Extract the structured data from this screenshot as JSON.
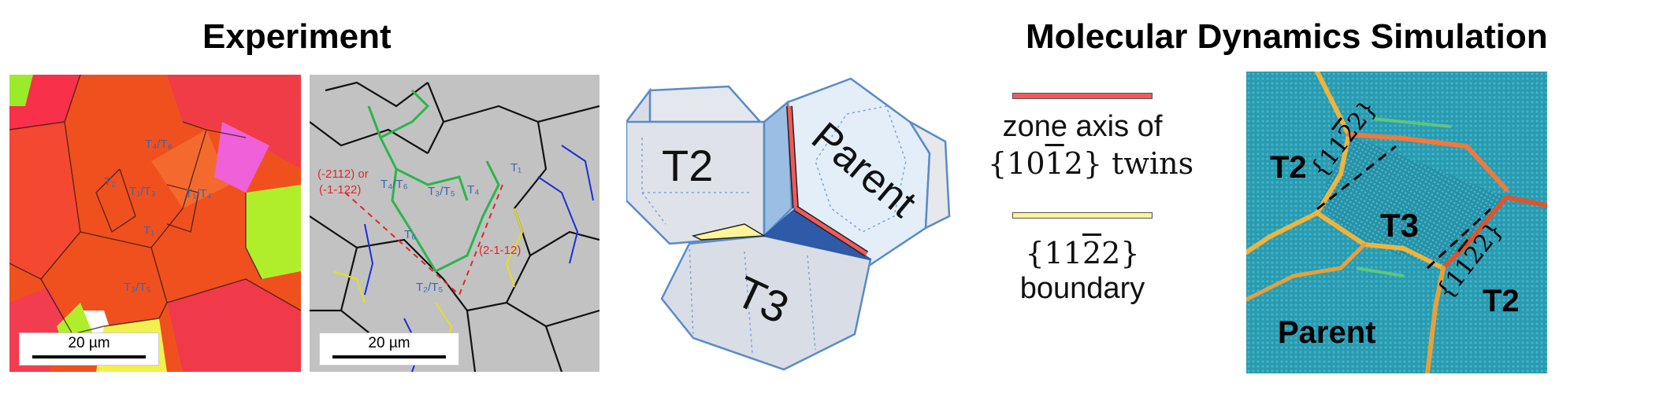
{
  "titles": {
    "experiment": "Experiment",
    "simulation": "Molecular Dynamics Simulation"
  },
  "ebsd": {
    "scale": "20 µm",
    "labels": [
      "T₄/T₆",
      "T₂",
      "T₁/T₃",
      "T₁/T₄",
      "T₁",
      "T₃/T₅"
    ]
  },
  "kam": {
    "scale": "20 µm",
    "plane_a": "(-2112) or",
    "plane_b": "(-1-122)",
    "plane_c": "(2-1-12)",
    "labels": [
      "T₄/T₆",
      "T₃/T₅",
      "T₄",
      "T₁",
      "T₂/T₅",
      "T₆"
    ]
  },
  "crystals": {
    "left": "T2",
    "right": "Parent",
    "bottom": "T3"
  },
  "legend": {
    "red_line1": "zone axis of",
    "red_line2_pre": "{10",
    "red_line2_bar": "1",
    "red_line2_post": "2} twins",
    "yellow_line1_pre": "{11",
    "yellow_line1_bar": "2",
    "yellow_line1_post": "2}",
    "yellow_line2": "boundary",
    "colors": {
      "zone_axis": "#f05a5a",
      "boundary": "#fff49a"
    }
  },
  "md": {
    "labels": {
      "t2_left": "T2",
      "t3": "T3",
      "t2_right": "T2",
      "parent": "Parent"
    },
    "plane_pre": "{11",
    "plane_bar": "2",
    "plane_post": "2}"
  }
}
